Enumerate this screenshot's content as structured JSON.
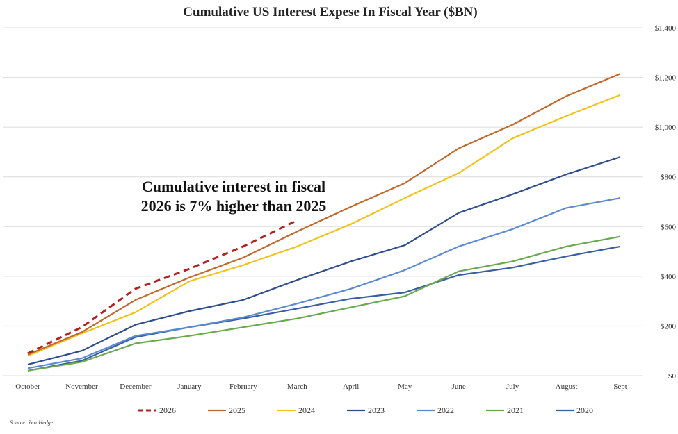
{
  "chart_data": {
    "type": "line",
    "title": "Cumulative US Interest Expese In Fiscal Year ($BN)",
    "categories": [
      "October",
      "November",
      "December",
      "January",
      "February",
      "March",
      "April",
      "May",
      "June",
      "July",
      "August",
      "Sept"
    ],
    "yticks": [
      "$0",
      "$200",
      "$400",
      "$600",
      "$800",
      "$1,000",
      "$1,200",
      "$1,400"
    ],
    "ylim": [
      0,
      1400
    ],
    "grid": true,
    "legend_position": "bottom",
    "series": [
      {
        "name": "2026",
        "color": "#b22222",
        "dashed": true,
        "values": [
          90,
          195,
          350,
          430,
          520,
          625,
          null,
          null,
          null,
          null,
          null,
          null
        ]
      },
      {
        "name": "2025",
        "color": "#c0672a",
        "dashed": false,
        "values": [
          85,
          175,
          305,
          395,
          475,
          580,
          680,
          775,
          915,
          1010,
          1125,
          1215
        ]
      },
      {
        "name": "2024",
        "color": "#f2c21b",
        "dashed": false,
        "values": [
          80,
          170,
          255,
          380,
          445,
          520,
          610,
          715,
          815,
          955,
          1045,
          1130
        ]
      },
      {
        "name": "2023",
        "color": "#2e4d8a",
        "dashed": false,
        "values": [
          45,
          100,
          205,
          260,
          305,
          385,
          460,
          525,
          655,
          730,
          810,
          880
        ]
      },
      {
        "name": "2022",
        "color": "#5b8ad2",
        "dashed": false,
        "values": [
          30,
          70,
          160,
          195,
          235,
          290,
          350,
          425,
          520,
          590,
          675,
          715
        ]
      },
      {
        "name": "2021",
        "color": "#6aa84f",
        "dashed": false,
        "values": [
          20,
          55,
          130,
          160,
          195,
          230,
          275,
          320,
          420,
          460,
          520,
          560
        ]
      },
      {
        "name": "2020",
        "color": "#3a5fa0",
        "dashed": false,
        "values": [
          20,
          60,
          155,
          195,
          230,
          270,
          310,
          335,
          405,
          435,
          480,
          520
        ]
      }
    ],
    "annotation": [
      "Cumulative interest in fiscal",
      "2026 is 7% higher than 2025"
    ],
    "source": "Source: ZeroHedge"
  }
}
